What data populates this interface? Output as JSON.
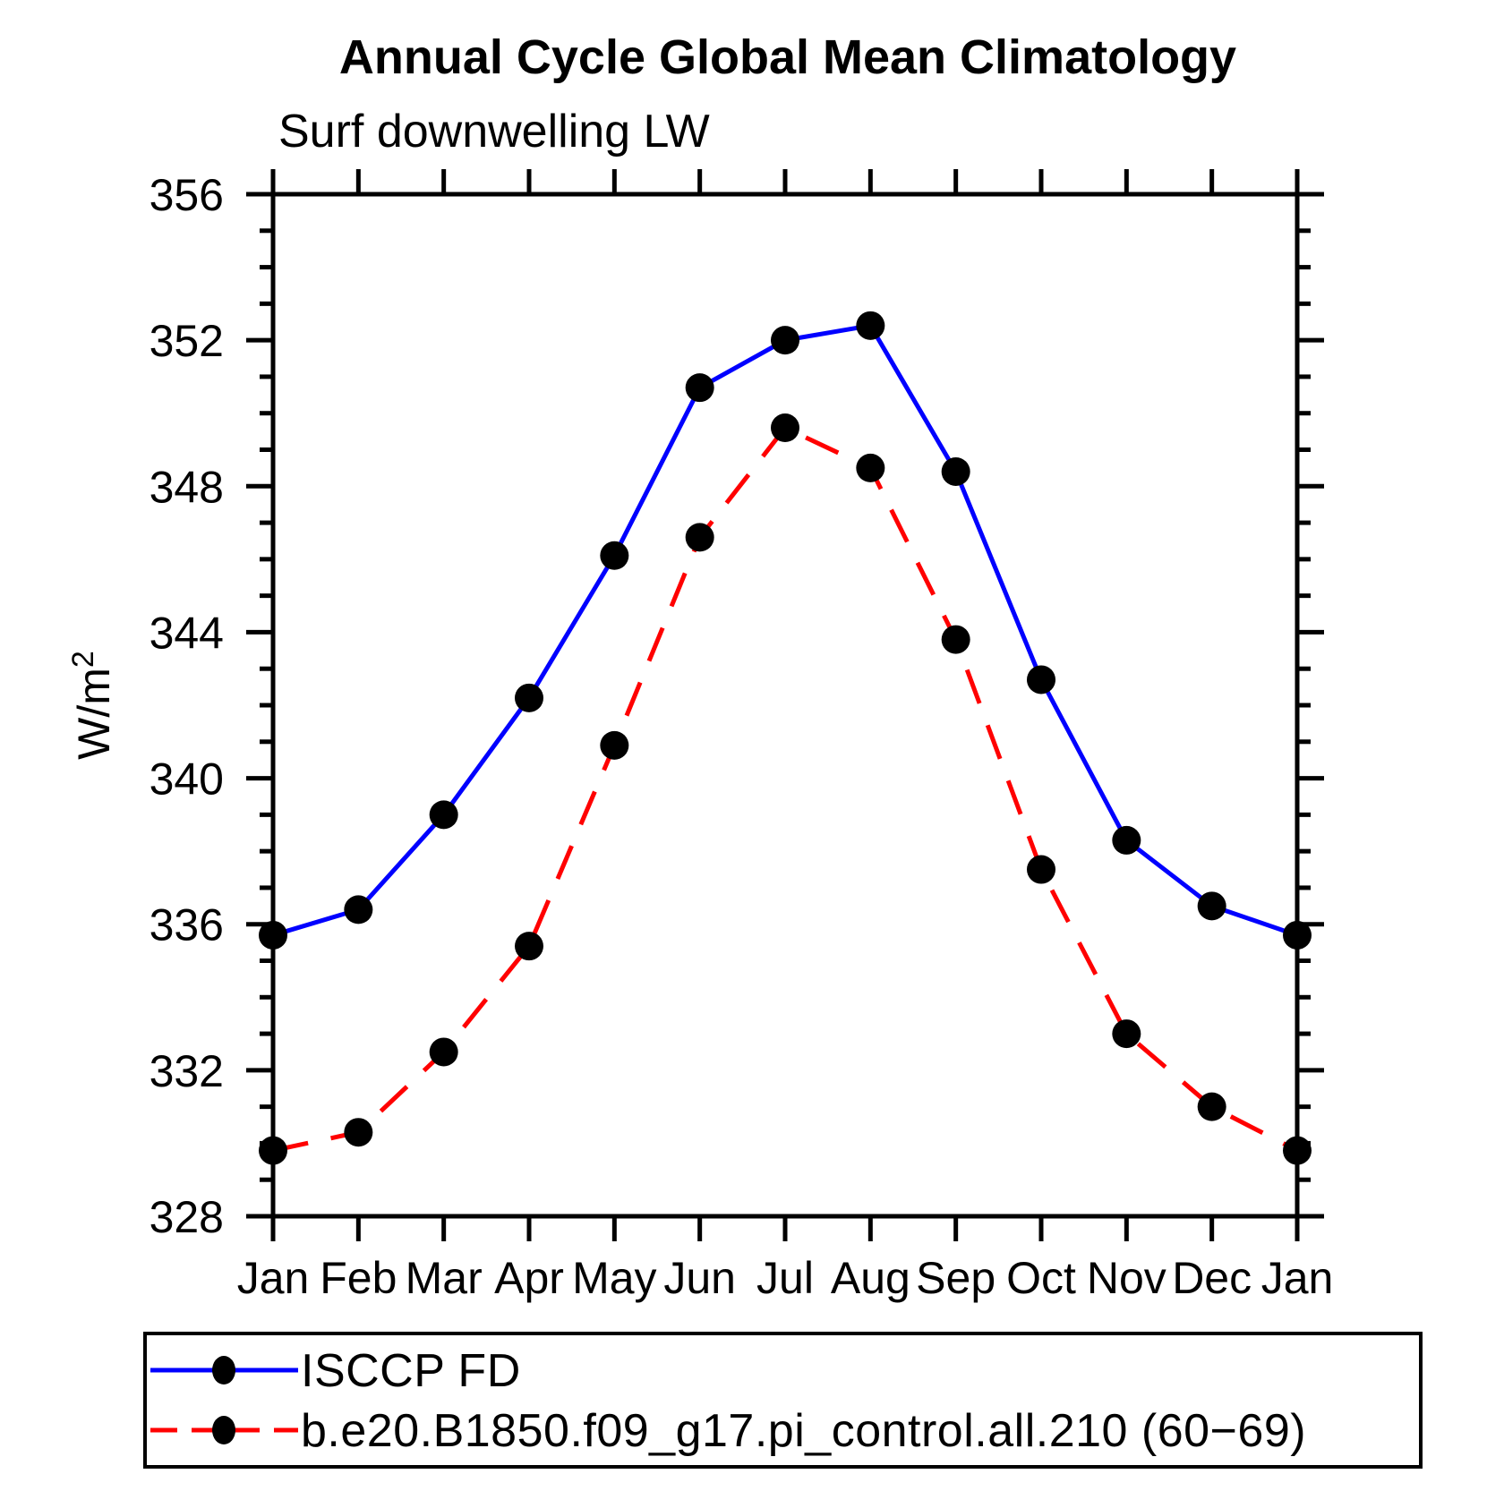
{
  "title": "Annual Cycle Global Mean Climatology",
  "subtitle": "Surf downwelling LW",
  "chart_data": {
    "type": "line",
    "categories": [
      "Jan",
      "Feb",
      "Mar",
      "Apr",
      "May",
      "Jun",
      "Jul",
      "Aug",
      "Sep",
      "Oct",
      "Nov",
      "Dec",
      "Jan"
    ],
    "xlabel": "",
    "ylabel": "W/m²",
    "ylim": [
      328,
      356
    ],
    "ytick_major": 4,
    "ytick_minor": 1,
    "ytick_labels": [
      "328",
      "332",
      "336",
      "340",
      "344",
      "348",
      "352",
      "356"
    ],
    "grid": false,
    "legend_position": "bottom-box",
    "frame_color": "#000000",
    "marker_color": "#000000",
    "series": [
      {
        "name": "ISCCP FD",
        "color": "#0000ff",
        "style": "solid",
        "marker": "circle",
        "values": [
          335.7,
          336.4,
          339.0,
          342.2,
          346.1,
          350.7,
          352.0,
          352.4,
          348.4,
          342.7,
          338.3,
          336.5,
          335.7
        ]
      },
      {
        "name": "b.e20.B1850.f09_g17.pi_control.all.210 (60−69)",
        "color": "#ff0000",
        "style": "dashed",
        "marker": "circle",
        "values": [
          329.8,
          330.3,
          332.5,
          335.4,
          340.9,
          346.6,
          349.6,
          348.5,
          343.8,
          337.5,
          333.0,
          331.0,
          329.8
        ]
      }
    ]
  }
}
